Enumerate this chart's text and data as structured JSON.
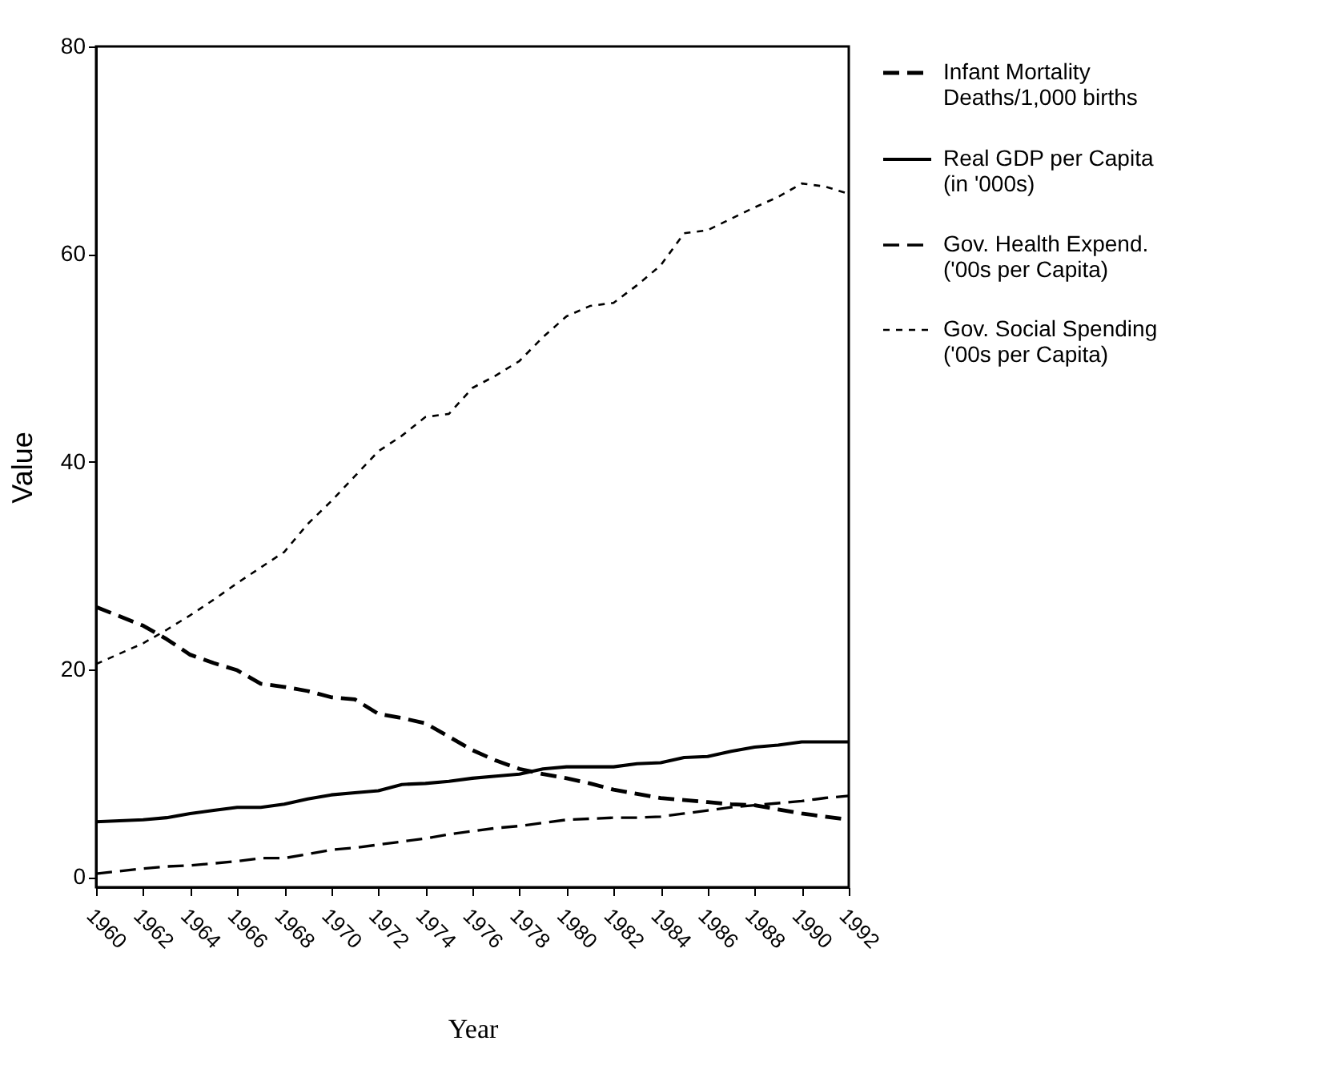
{
  "chart_data": {
    "type": "line",
    "xlabel": "Year",
    "ylabel": "Value",
    "x": [
      1960,
      1962,
      1963,
      1964,
      1965,
      1966,
      1967,
      1968,
      1969,
      1970,
      1971,
      1972,
      1973,
      1974,
      1975,
      1976,
      1977,
      1978,
      1979,
      1980,
      1981,
      1982,
      1983,
      1984,
      1985,
      1986,
      1987,
      1988,
      1989,
      1990,
      1991,
      1992
    ],
    "series": [
      {
        "name": "Infant Mortality\nDeaths/1,000 births",
        "color": "#000000",
        "line_style": "dashed",
        "values": [
          26.0,
          24.2,
          22.9,
          21.4,
          20.6,
          19.9,
          18.6,
          18.3,
          17.9,
          17.3,
          17.1,
          15.7,
          15.3,
          14.8,
          13.5,
          12.2,
          11.2,
          10.4,
          9.9,
          9.5,
          9.0,
          8.4,
          8.0,
          7.6,
          7.4,
          7.2,
          7.0,
          6.9,
          6.5,
          6.1,
          5.8,
          5.5
        ]
      },
      {
        "name": "Real GDP per Capita\n(in '000s)",
        "color": "#000000",
        "line_style": "solid",
        "values": [
          5.3,
          5.5,
          5.7,
          6.1,
          6.4,
          6.7,
          6.7,
          7.0,
          7.5,
          7.9,
          8.1,
          8.3,
          8.9,
          9.0,
          9.2,
          9.5,
          9.7,
          9.9,
          10.4,
          10.6,
          10.6,
          10.6,
          10.9,
          11.0,
          11.5,
          11.6,
          12.1,
          12.5,
          12.7,
          13.0,
          13.0,
          13.0
        ]
      },
      {
        "name": "Gov. Health Expend.\n('00s per Capita)",
        "color": "#000000",
        "line_style": "dashed",
        "values": [
          0.3,
          0.8,
          1.0,
          1.1,
          1.3,
          1.5,
          1.8,
          1.8,
          2.2,
          2.6,
          2.8,
          3.1,
          3.4,
          3.7,
          4.1,
          4.4,
          4.7,
          4.9,
          5.2,
          5.5,
          5.6,
          5.7,
          5.7,
          5.8,
          6.1,
          6.4,
          6.7,
          6.9,
          7.1,
          7.3,
          7.6,
          7.8
        ]
      },
      {
        "name": "Gov. Social Spending\n('00s per Capita)",
        "color": "#000000",
        "line_style": "dotted",
        "values": [
          20.5,
          22.5,
          23.8,
          25.2,
          26.7,
          28.3,
          29.8,
          31.3,
          34.0,
          36.2,
          38.6,
          41.0,
          42.5,
          44.3,
          44.6,
          47.1,
          48.3,
          49.7,
          52.0,
          54.0,
          55.0,
          55.3,
          57.0,
          58.9,
          62.0,
          62.3,
          63.4,
          64.5,
          65.5,
          66.8,
          66.5,
          65.8
        ]
      }
    ],
    "xlim": [
      1960,
      1992
    ],
    "xticks": [
      1960,
      1962,
      1964,
      1966,
      1968,
      1970,
      1972,
      1974,
      1976,
      1978,
      1980,
      1982,
      1984,
      1986,
      1988,
      1990,
      1992
    ],
    "ylim": [
      -1,
      80
    ],
    "yticks": [
      0,
      20,
      40,
      60,
      80
    ],
    "grid": false,
    "legend": "right"
  }
}
